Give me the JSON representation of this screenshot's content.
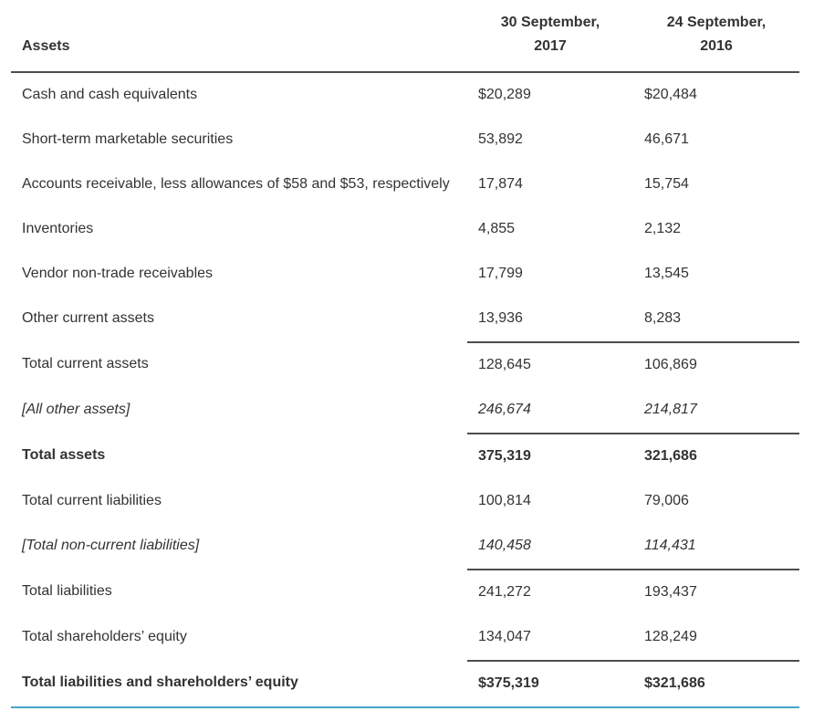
{
  "table": {
    "header": {
      "label": "Assets",
      "col1": "30 September,\n2017",
      "col1_line1": "30 September,",
      "col1_line2": "2017",
      "col2_line1": "24 September,",
      "col2_line2": "2016"
    },
    "rows": [
      {
        "label": "Cash and cash equivalents",
        "v2017": "$20,289",
        "v2016": "$20,484"
      },
      {
        "label": "Short-term marketable securities",
        "v2017": "53,892",
        "v2016": "46,671"
      },
      {
        "label": "Accounts receivable, less allowances of $58 and $53, respectively",
        "v2017": "17,874",
        "v2016": "15,754"
      },
      {
        "label": "Inventories",
        "v2017": "4,855",
        "v2016": "2,132"
      },
      {
        "label": "Vendor non-trade receivables",
        "v2017": "17,799",
        "v2016": "13,545"
      },
      {
        "label": "Other current assets",
        "v2017": "13,936",
        "v2016": "8,283"
      },
      {
        "label": "Total current assets",
        "v2017": "128,645",
        "v2016": "106,869"
      },
      {
        "label": "[All other assets]",
        "v2017": "246,674",
        "v2016": "214,817"
      },
      {
        "label": "Total assets",
        "v2017": "375,319",
        "v2016": "321,686"
      },
      {
        "label": "Total current liabilities",
        "v2017": "100,814",
        "v2016": "79,006"
      },
      {
        "label": "[Total non-current liabilities]",
        "v2017": "140,458",
        "v2016": "114,431"
      },
      {
        "label": "Total liabilities",
        "v2017": "241,272",
        "v2016": "193,437"
      },
      {
        "label": "Total shareholders’ equity",
        "v2017": "134,047",
        "v2016": "128,249"
      },
      {
        "label": "Total liabilities and shareholders’ equity",
        "v2017": "$375,319",
        "v2016": "$321,686"
      }
    ]
  },
  "colors": {
    "text": "#333333",
    "rule": "#4d4d4d",
    "bottom_rule": "#4aa3c8"
  }
}
